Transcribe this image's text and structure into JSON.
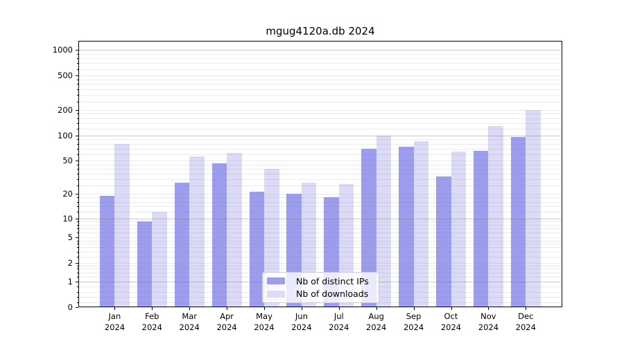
{
  "title": "mgug4120a.db 2024",
  "legend": {
    "items": [
      {
        "label": "Nb of distinct IPs",
        "color": "#9d9df0"
      },
      {
        "label": "Nb of downloads",
        "color": "#dbdbf8"
      }
    ]
  },
  "axes": {
    "y_tick_labels": [
      "0",
      "1",
      "2",
      "5",
      "10",
      "20",
      "50",
      "100",
      "200",
      "500",
      "1000"
    ],
    "x_tick_line2": "2024"
  },
  "chart_data": {
    "type": "bar",
    "title": "mgug4120a.db 2024",
    "categories": [
      "Jan 2024",
      "Feb 2024",
      "Mar 2024",
      "Apr 2024",
      "May 2024",
      "Jun 2024",
      "Jul 2024",
      "Aug 2024",
      "Sep 2024",
      "Oct 2024",
      "Nov 2024",
      "Dec 2024"
    ],
    "series": [
      {
        "name": "Nb of distinct IPs",
        "color": "#9d9df0",
        "values": [
          19,
          9,
          27,
          46,
          21,
          20,
          18,
          70,
          73,
          32,
          66,
          96
        ]
      },
      {
        "name": "Nb of downloads",
        "color": "#dbdbf8",
        "values": [
          80,
          12,
          56,
          62,
          40,
          27,
          26,
          100,
          85,
          64,
          130,
          200
        ]
      }
    ],
    "yscale": "symlog",
    "yticks": [
      0,
      1,
      2,
      5,
      10,
      20,
      50,
      100,
      200,
      500,
      1000
    ],
    "ylim": [
      0,
      1270
    ],
    "grid": true,
    "legend_position": "lower center",
    "bar_group": "side-by-side"
  }
}
